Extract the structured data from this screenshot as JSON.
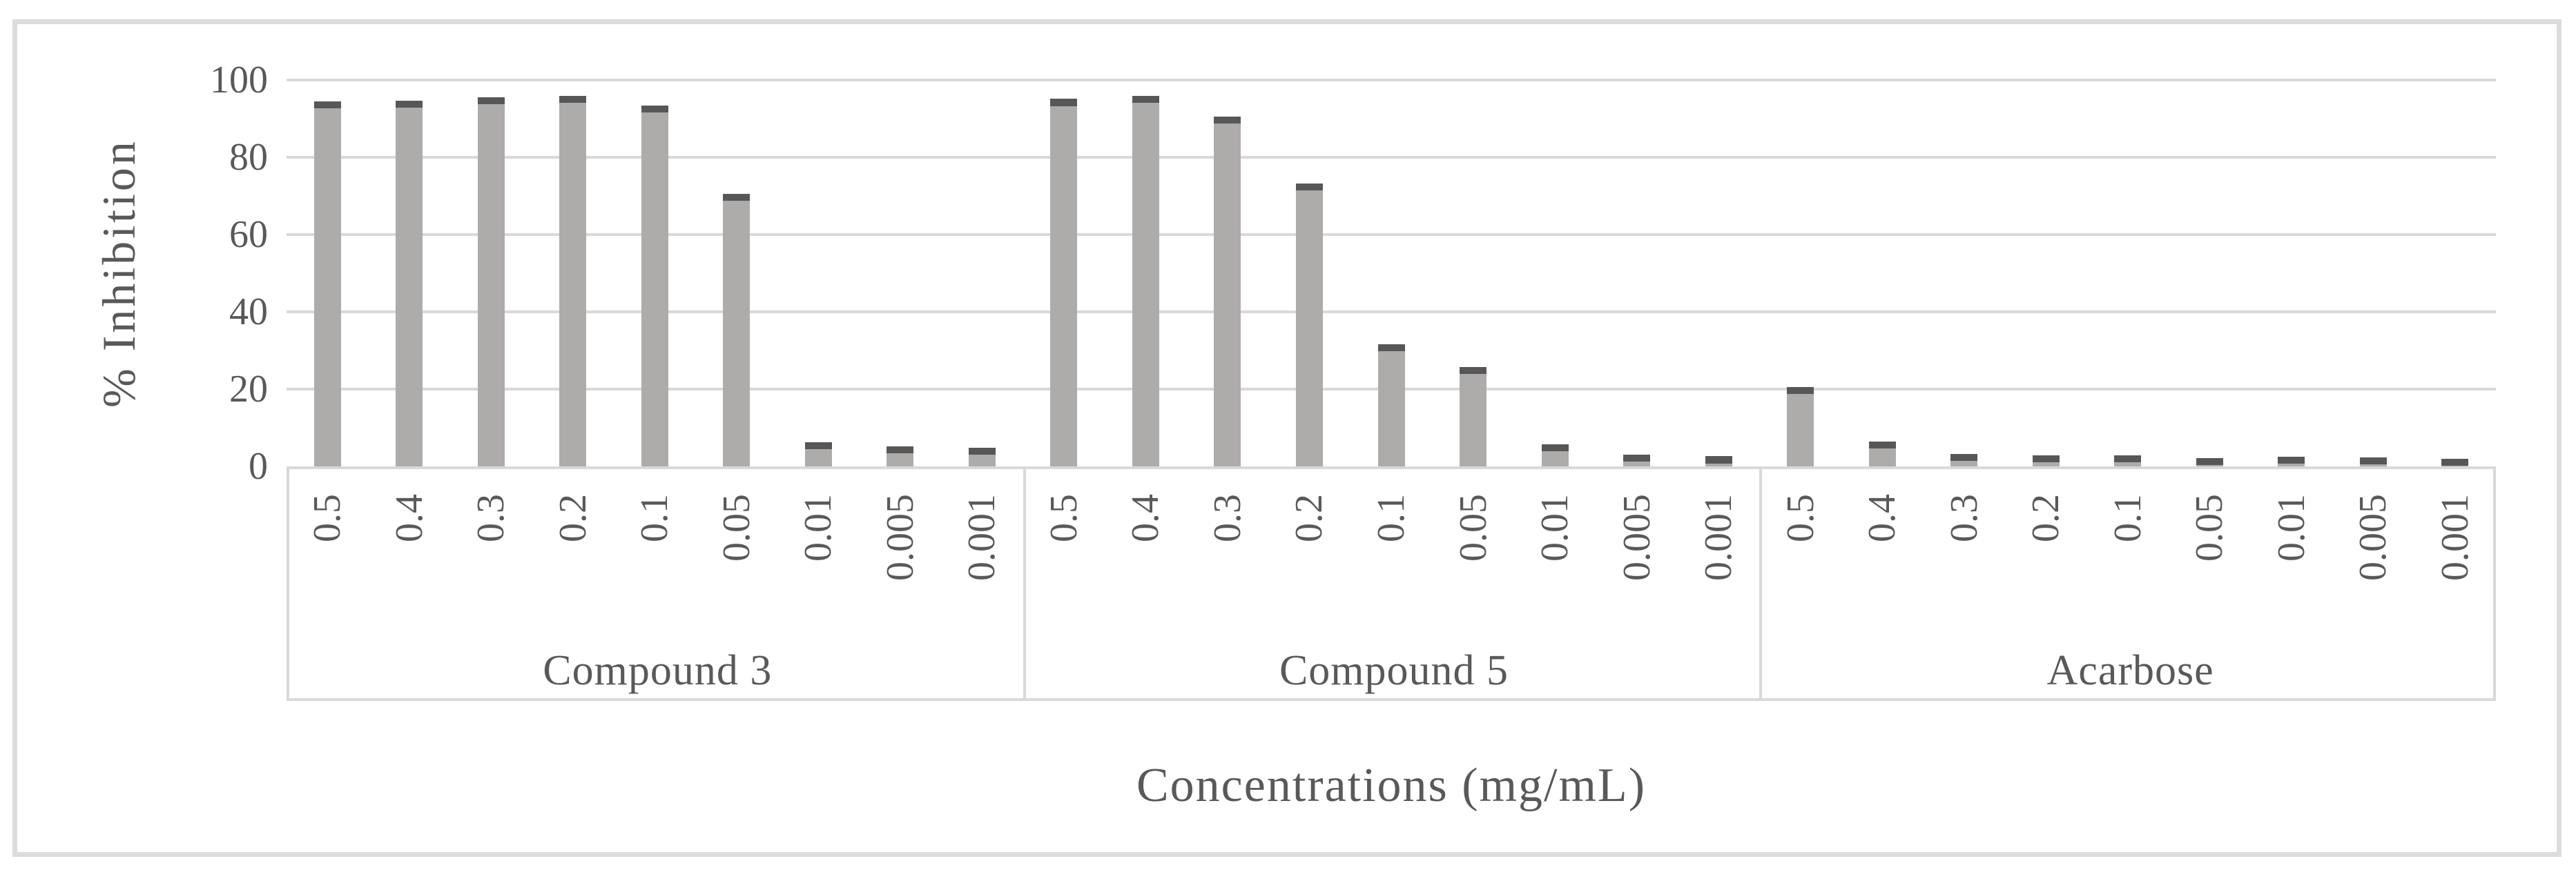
{
  "chart_data": {
    "type": "bar",
    "title": "",
    "ylabel": "% Inhibition",
    "xlabel": "Concentrations (mg/mL)",
    "ylim": [
      0,
      100
    ],
    "yticks": [
      "0",
      "20",
      "40",
      "60",
      "80",
      "100"
    ],
    "grid": true,
    "legend": false,
    "categories": [
      "0.5",
      "0.4",
      "0.3",
      "0.2",
      "0.1",
      "0.05",
      "0.01",
      "0.005",
      "0.001"
    ],
    "groups": [
      {
        "label": "Compound 3",
        "values": [
          94.4,
          94.7,
          95.5,
          95.9,
          93.4,
          70.6,
          6.3,
          5.2,
          4.9
        ]
      },
      {
        "label": "Compound 5",
        "values": [
          95.1,
          95.9,
          90.6,
          73.2,
          31.6,
          25.8,
          5.7,
          3.0,
          2.6
        ]
      },
      {
        "label": "Acarbose",
        "values": [
          20.5,
          6.4,
          3.2,
          2.9,
          2.9,
          2.2,
          2.5,
          2.3,
          2.0
        ]
      }
    ],
    "bar_color": "#aeabab",
    "bar_cap_color": "#575757",
    "cap_units": 1.8,
    "gridline_color": "#d9d9d9",
    "text_color": "#595959"
  }
}
